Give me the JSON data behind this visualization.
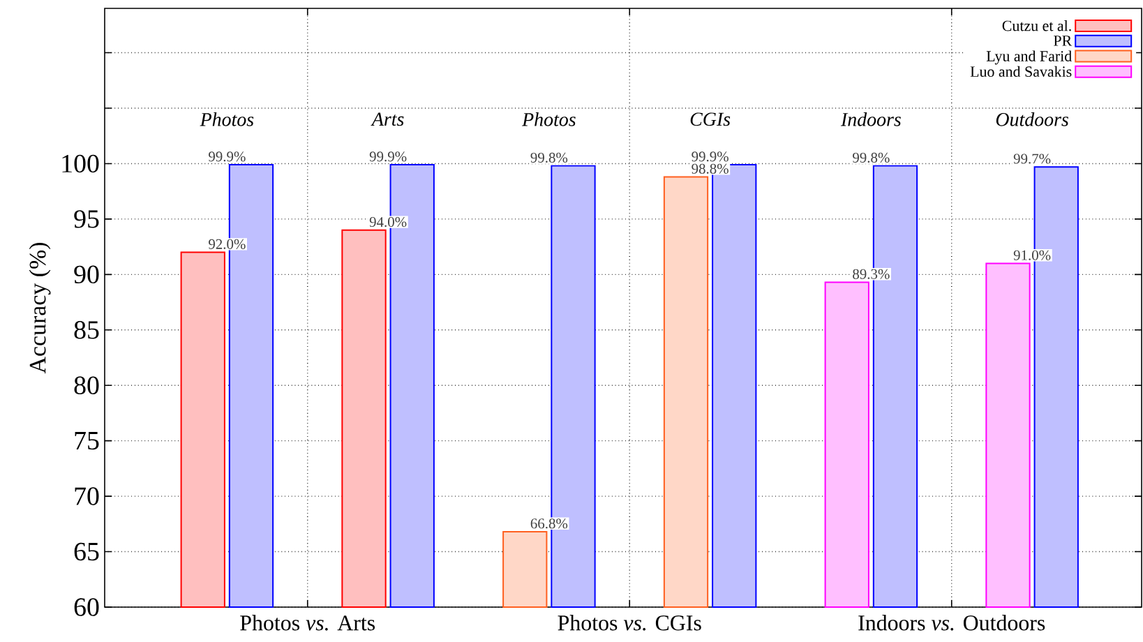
{
  "chart_data": {
    "type": "bar",
    "ylabel": "Accuracy (%)",
    "categories": [
      "Photos",
      "Arts",
      "Photos",
      "CGIs",
      "Indoors",
      "Outdoors"
    ],
    "ylim": [
      60,
      114
    ],
    "yticks": [
      60,
      65,
      70,
      75,
      80,
      85,
      90,
      95,
      100,
      {
        "value": 105,
        "label": null
      },
      {
        "value": 110,
        "label": null
      }
    ],
    "series": [
      {
        "name": "Cutzu et al.",
        "color": "#ff0000",
        "values": [
          92.0,
          94.0,
          null,
          null,
          null,
          null
        ],
        "value_labels": [
          "92.0%",
          "94.0%",
          null,
          null,
          null,
          null
        ]
      },
      {
        "name": "PR",
        "color": "#0000ff",
        "values": [
          99.9,
          99.9,
          99.8,
          99.9,
          99.8,
          99.7
        ],
        "value_labels": [
          "99.9%",
          "99.9%",
          "99.8%",
          "99.9%",
          "99.8%",
          "99.7%"
        ]
      },
      {
        "name": "Lyu and Farid",
        "color": "#ff5f1f",
        "values": [
          null,
          null,
          66.8,
          98.8,
          null,
          null
        ],
        "value_labels": [
          null,
          null,
          "66.8%",
          "98.8%",
          null,
          null
        ]
      },
      {
        "name": "Luo and Savakis",
        "color": "#ff00ff",
        "values": [
          null,
          null,
          null,
          null,
          89.3,
          91.0
        ],
        "value_labels": [
          null,
          null,
          null,
          null,
          "89.3%",
          "91.0%"
        ]
      }
    ],
    "annotations": [
      "Photos *vs.* Arts",
      "Photos *vs.* CGIs",
      "Indoors *vs.* Outdoors"
    ],
    "grid": true,
    "legend": "top right"
  }
}
